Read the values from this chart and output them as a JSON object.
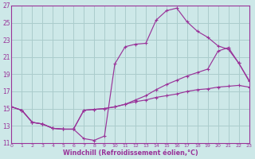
{
  "bg_color": "#cde8e8",
  "grid_color": "#aacccc",
  "line_color": "#993399",
  "xlabel": "Windchill (Refroidissement éolien,°C)",
  "xlim": [
    0,
    23
  ],
  "ylim": [
    11,
    27
  ],
  "xticks": [
    0,
    1,
    2,
    3,
    4,
    5,
    6,
    7,
    8,
    9,
    10,
    11,
    12,
    13,
    14,
    15,
    16,
    17,
    18,
    19,
    20,
    21,
    22,
    23
  ],
  "yticks": [
    11,
    13,
    15,
    17,
    19,
    21,
    23,
    25,
    27
  ],
  "curve1_x": [
    0,
    1,
    2,
    3,
    4,
    5,
    6,
    7,
    8,
    9,
    10,
    11,
    12,
    13,
    14,
    15,
    16,
    17,
    18,
    19,
    20,
    21,
    22,
    23
  ],
  "curve1_y": [
    15.2,
    14.8,
    13.4,
    13.2,
    12.7,
    12.6,
    12.6,
    11.5,
    11.3,
    11.8,
    20.2,
    22.2,
    22.5,
    22.6,
    25.3,
    26.4,
    26.7,
    25.1,
    24.0,
    23.3,
    22.3,
    21.9,
    20.3,
    18.3
  ],
  "curve2_x": [
    0,
    1,
    2,
    3,
    4,
    5,
    6,
    7,
    8,
    9,
    10,
    11,
    12,
    13,
    14,
    15,
    16,
    17,
    18,
    19,
    20,
    21,
    22,
    23
  ],
  "curve2_y": [
    15.2,
    14.8,
    13.4,
    13.2,
    12.7,
    12.6,
    12.6,
    14.8,
    14.9,
    15.0,
    15.2,
    15.5,
    16.0,
    16.5,
    17.2,
    17.8,
    18.3,
    18.8,
    19.2,
    19.6,
    21.7,
    22.1,
    20.3,
    18.2
  ],
  "curve3_x": [
    0,
    1,
    2,
    3,
    4,
    5,
    6,
    7,
    8,
    9,
    10,
    11,
    12,
    13,
    14,
    15,
    16,
    17,
    18,
    19,
    20,
    21,
    22,
    23
  ],
  "curve3_y": [
    15.2,
    14.8,
    13.4,
    13.2,
    12.7,
    12.6,
    12.6,
    14.8,
    14.9,
    15.0,
    15.2,
    15.5,
    15.8,
    16.0,
    16.3,
    16.5,
    16.7,
    17.0,
    17.2,
    17.3,
    17.5,
    17.6,
    17.7,
    17.5
  ]
}
